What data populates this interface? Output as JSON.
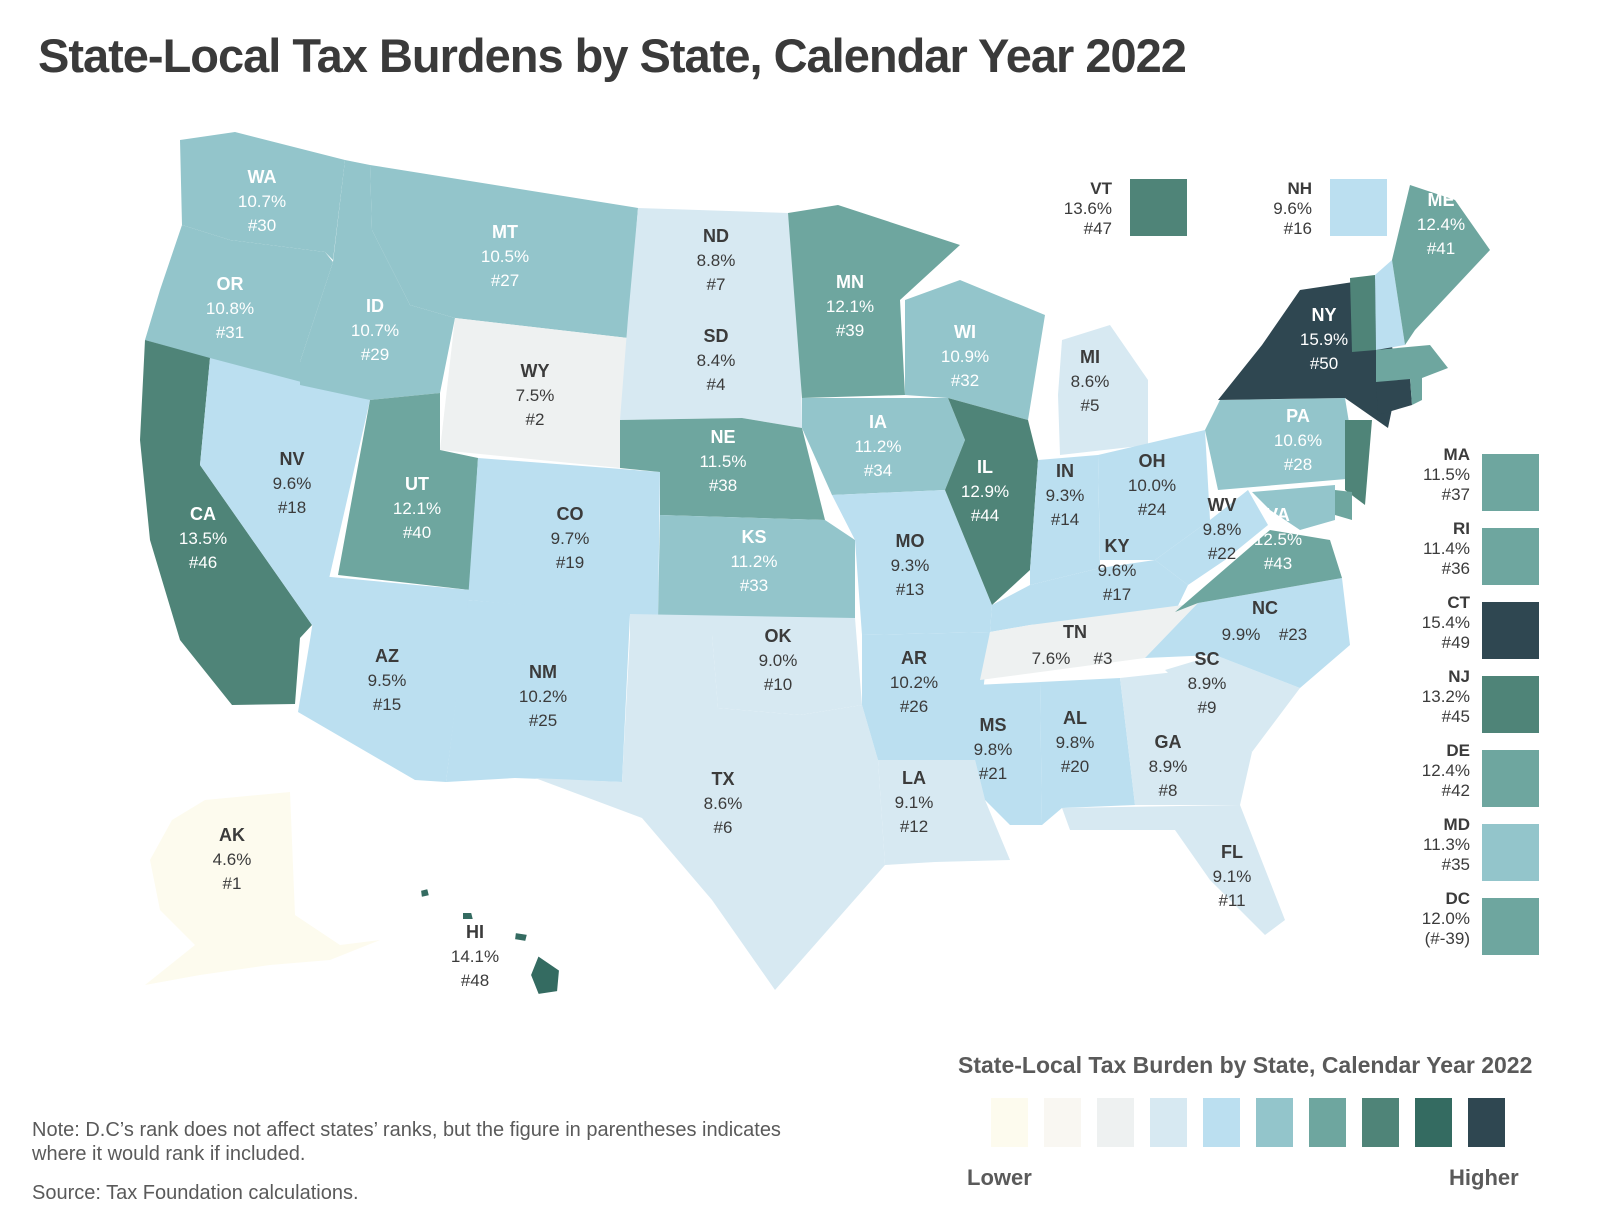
{
  "title": "State-Local Tax Burdens by State, Calendar Year 2022",
  "note": "Note: D.C’s rank does not affect states’ ranks, but the figure in parentheses indicates where it would rank if included.",
  "source": "Source: Tax Foundation calculations.",
  "legend": {
    "title": "State-Local Tax Burden by State, Calendar Year 2022",
    "lower_label": "Lower",
    "higher_label": "Higher",
    "scale_colors": [
      "#fdfbee",
      "#f9f7f2",
      "#eef1f1",
      "#d7e9f2",
      "#bbdff0",
      "#93c5cb",
      "#6ea69f",
      "#4f8478",
      "#346b61",
      "#2f4751"
    ]
  },
  "states": {
    "WA": {
      "abbr": "WA",
      "value": "10.7%",
      "rank": "#30",
      "color": "#93c5cb"
    },
    "OR": {
      "abbr": "OR",
      "value": "10.8%",
      "rank": "#31",
      "color": "#93c5cb"
    },
    "CA": {
      "abbr": "CA",
      "value": "13.5%",
      "rank": "#46",
      "color": "#4f8478"
    },
    "NV": {
      "abbr": "NV",
      "value": "9.6%",
      "rank": "#18",
      "color": "#bbdff0"
    },
    "ID": {
      "abbr": "ID",
      "value": "10.7%",
      "rank": "#29",
      "color": "#93c5cb"
    },
    "MT": {
      "abbr": "MT",
      "value": "10.5%",
      "rank": "#27",
      "color": "#93c5cb"
    },
    "WY": {
      "abbr": "WY",
      "value": "7.5%",
      "rank": "#2",
      "color": "#eef1f1"
    },
    "UT": {
      "abbr": "UT",
      "value": "12.1%",
      "rank": "#40",
      "color": "#6ea69f"
    },
    "AZ": {
      "abbr": "AZ",
      "value": "9.5%",
      "rank": "#15",
      "color": "#bbdff0"
    },
    "CO": {
      "abbr": "CO",
      "value": "9.7%",
      "rank": "#19",
      "color": "#bbdff0"
    },
    "NM": {
      "abbr": "NM",
      "value": "10.2%",
      "rank": "#25",
      "color": "#bbdff0"
    },
    "ND": {
      "abbr": "ND",
      "value": "8.8%",
      "rank": "#7",
      "color": "#d7e9f2"
    },
    "SD": {
      "abbr": "SD",
      "value": "8.4%",
      "rank": "#4",
      "color": "#d7e9f2"
    },
    "NE": {
      "abbr": "NE",
      "value": "11.5%",
      "rank": "#38",
      "color": "#6ea69f"
    },
    "KS": {
      "abbr": "KS",
      "value": "11.2%",
      "rank": "#33",
      "color": "#93c5cb"
    },
    "OK": {
      "abbr": "OK",
      "value": "9.0%",
      "rank": "#10",
      "color": "#d7e9f2"
    },
    "TX": {
      "abbr": "TX",
      "value": "8.6%",
      "rank": "#6",
      "color": "#d7e9f2"
    },
    "MN": {
      "abbr": "MN",
      "value": "12.1%",
      "rank": "#39",
      "color": "#6ea69f"
    },
    "IA": {
      "abbr": "IA",
      "value": "11.2%",
      "rank": "#34",
      "color": "#93c5cb"
    },
    "MO": {
      "abbr": "MO",
      "value": "9.3%",
      "rank": "#13",
      "color": "#bbdff0"
    },
    "AR": {
      "abbr": "AR",
      "value": "10.2%",
      "rank": "#26",
      "color": "#bbdff0"
    },
    "LA": {
      "abbr": "LA",
      "value": "9.1%",
      "rank": "#12",
      "color": "#d7e9f2"
    },
    "WI": {
      "abbr": "WI",
      "value": "10.9%",
      "rank": "#32",
      "color": "#93c5cb"
    },
    "IL": {
      "abbr": "IL",
      "value": "12.9%",
      "rank": "#44",
      "color": "#4f8478"
    },
    "MI": {
      "abbr": "MI",
      "value": "8.6%",
      "rank": "#5",
      "color": "#d7e9f2"
    },
    "IN": {
      "abbr": "IN",
      "value": "9.3%",
      "rank": "#14",
      "color": "#bbdff0"
    },
    "OH": {
      "abbr": "OH",
      "value": "10.0%",
      "rank": "#24",
      "color": "#bbdff0"
    },
    "KY": {
      "abbr": "KY",
      "value": "9.6%",
      "rank": "#17",
      "color": "#bbdff0"
    },
    "TN": {
      "abbr": "TN",
      "value": "7.6%",
      "rank": "#3",
      "color": "#eef1f1"
    },
    "MS": {
      "abbr": "MS",
      "value": "9.8%",
      "rank": "#21",
      "color": "#bbdff0"
    },
    "AL": {
      "abbr": "AL",
      "value": "9.8%",
      "rank": "#20",
      "color": "#bbdff0"
    },
    "GA": {
      "abbr": "GA",
      "value": "8.9%",
      "rank": "#8",
      "color": "#d7e9f2"
    },
    "FL": {
      "abbr": "FL",
      "value": "9.1%",
      "rank": "#11",
      "color": "#d7e9f2"
    },
    "SC": {
      "abbr": "SC",
      "value": "8.9%",
      "rank": "#9",
      "color": "#d7e9f2"
    },
    "NC": {
      "abbr": "NC",
      "value": "9.9%",
      "rank": "#23",
      "color": "#bbdff0"
    },
    "VA": {
      "abbr": "VA",
      "value": "12.5%",
      "rank": "#43",
      "color": "#6ea69f"
    },
    "WV": {
      "abbr": "WV",
      "value": "9.8%",
      "rank": "#22",
      "color": "#bbdff0"
    },
    "PA": {
      "abbr": "PA",
      "value": "10.6%",
      "rank": "#28",
      "color": "#93c5cb"
    },
    "NY": {
      "abbr": "NY",
      "value": "15.9%",
      "rank": "#50",
      "color": "#2f4751"
    },
    "VT": {
      "abbr": "VT",
      "value": "13.6%",
      "rank": "#47",
      "color": "#4f8478"
    },
    "NH": {
      "abbr": "NH",
      "value": "9.6%",
      "rank": "#16",
      "color": "#bbdff0"
    },
    "ME": {
      "abbr": "ME",
      "value": "12.4%",
      "rank": "#41",
      "color": "#6ea69f"
    },
    "MA": {
      "abbr": "MA",
      "value": "11.5%",
      "rank": "#37",
      "color": "#6ea69f"
    },
    "RI": {
      "abbr": "RI",
      "value": "11.4%",
      "rank": "#36",
      "color": "#6ea69f"
    },
    "CT": {
      "abbr": "CT",
      "value": "15.4%",
      "rank": "#49",
      "color": "#2f4751"
    },
    "NJ": {
      "abbr": "NJ",
      "value": "13.2%",
      "rank": "#45",
      "color": "#4f8478"
    },
    "DE": {
      "abbr": "DE",
      "value": "12.4%",
      "rank": "#42",
      "color": "#6ea69f"
    },
    "MD": {
      "abbr": "MD",
      "value": "11.3%",
      "rank": "#35",
      "color": "#93c5cb"
    },
    "DC": {
      "abbr": "DC",
      "value": "12.0%",
      "rank": "(#-39)",
      "color": "#6ea69f"
    },
    "AK": {
      "abbr": "AK",
      "value": "4.6%",
      "rank": "#1",
      "color": "#fdfbee"
    },
    "HI": {
      "abbr": "HI",
      "value": "14.1%",
      "rank": "#48",
      "color": "#346b61"
    }
  }
}
